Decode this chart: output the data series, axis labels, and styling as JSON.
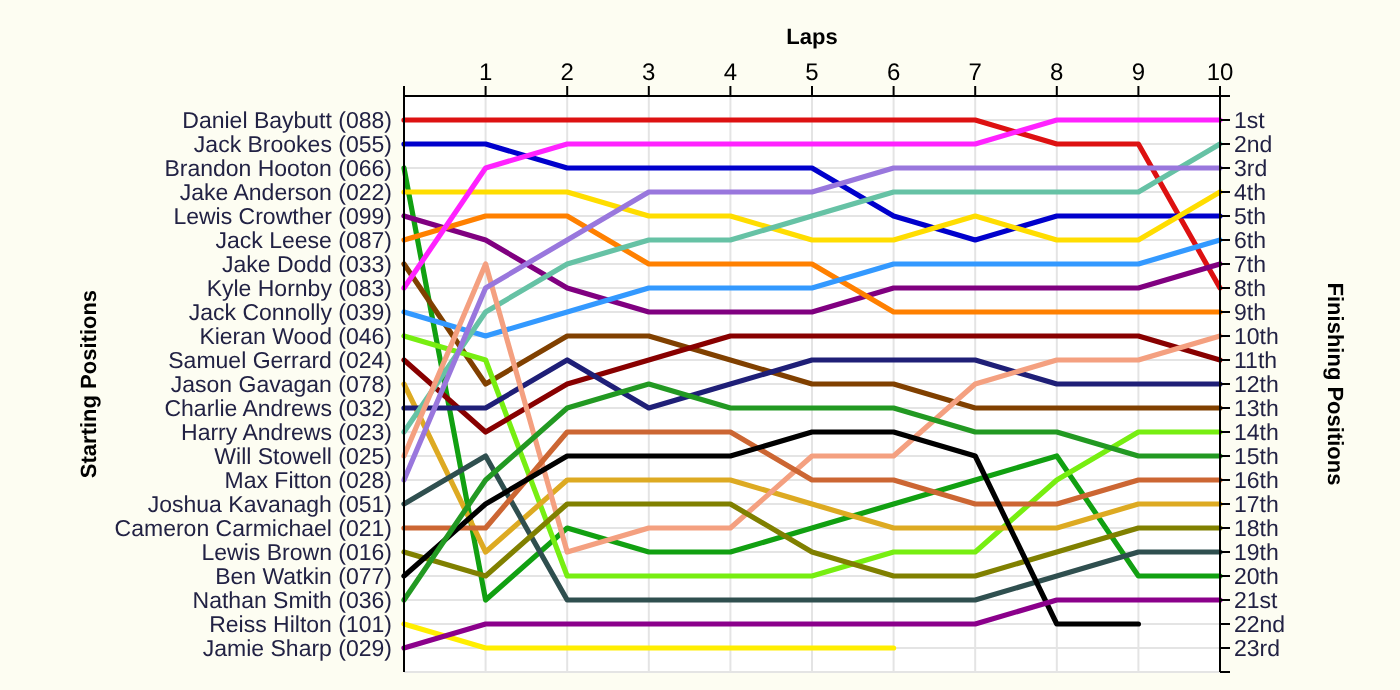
{
  "chart_data": {
    "type": "line",
    "xlabel": "Laps",
    "ylabel": "Finishing Positions",
    "annotations": [
      "Starting Positions"
    ],
    "x": [
      0,
      1,
      2,
      3,
      4,
      5,
      6,
      7,
      8,
      9,
      10
    ],
    "xlim": [
      0,
      10
    ],
    "xticks": [
      {
        "value": 0,
        "label": null
      },
      1,
      2,
      3,
      4,
      5,
      6,
      7,
      8,
      9,
      10
    ],
    "ylim": [
      24,
      0
    ],
    "yticks": [
      {
        "value": 0,
        "label": null
      },
      {
        "value": 1,
        "label": "1st"
      },
      {
        "value": 2,
        "label": "2nd"
      },
      {
        "value": 3,
        "label": "3rd"
      },
      {
        "value": 4,
        "label": "4th"
      },
      {
        "value": 5,
        "label": "5th"
      },
      {
        "value": 6,
        "label": "6th"
      },
      {
        "value": 7,
        "label": "7th"
      },
      {
        "value": 8,
        "label": "8th"
      },
      {
        "value": 9,
        "label": "9th"
      },
      {
        "value": 10,
        "label": "10th"
      },
      {
        "value": 11,
        "label": "11th"
      },
      {
        "value": 12,
        "label": "12th"
      },
      {
        "value": 13,
        "label": "13th"
      },
      {
        "value": 14,
        "label": "14th"
      },
      {
        "value": 15,
        "label": "15th"
      },
      {
        "value": 16,
        "label": "16th"
      },
      {
        "value": 17,
        "label": "17th"
      },
      {
        "value": 18,
        "label": "18th"
      },
      {
        "value": 19,
        "label": "19th"
      },
      {
        "value": 20,
        "label": "20th"
      },
      {
        "value": 21,
        "label": "21st"
      },
      {
        "value": 22,
        "label": "22nd"
      },
      {
        "value": 23,
        "label": "23rd"
      },
      {
        "value": 24,
        "label": null
      }
    ],
    "grid": true,
    "series": [
      {
        "name": "Daniel Baybutt (088)",
        "color": "#dd1111",
        "values": [
          1,
          1,
          1,
          1,
          1,
          1,
          1,
          1,
          2,
          2,
          8
        ]
      },
      {
        "name": "Jack Brookes (055)",
        "color": "#0000cc",
        "values": [
          2,
          2,
          3,
          3,
          3,
          3,
          5,
          6,
          5,
          5,
          5
        ]
      },
      {
        "name": "Brandon Hooton (066)",
        "color": "#11a011",
        "values": [
          3,
          21,
          18,
          19,
          19,
          18,
          17,
          16,
          15,
          20,
          20
        ]
      },
      {
        "name": "Jake Anderson (022)",
        "color": "#ffdd00",
        "values": [
          4,
          4,
          4,
          5,
          5,
          6,
          6,
          5,
          6,
          6,
          4
        ]
      },
      {
        "name": "Lewis Crowther (099)",
        "color": "#800080",
        "values": [
          5,
          6,
          8,
          9,
          9,
          9,
          8,
          8,
          8,
          8,
          7
        ]
      },
      {
        "name": "Jack Leese (087)",
        "color": "#ff8000",
        "values": [
          6,
          5,
          5,
          7,
          7,
          7,
          9,
          9,
          9,
          9,
          9
        ]
      },
      {
        "name": "Jake Dodd (033)",
        "color": "#804000",
        "values": [
          7,
          12,
          10,
          10,
          11,
          12,
          12,
          13,
          13,
          13,
          13
        ]
      },
      {
        "name": "Kyle Hornby (083)",
        "color": "#ff22ff",
        "values": [
          8,
          3,
          2,
          2,
          2,
          2,
          2,
          2,
          1,
          1,
          1
        ]
      },
      {
        "name": "Jack Connolly (039)",
        "color": "#3399ff",
        "values": [
          9,
          10,
          9,
          8,
          8,
          8,
          7,
          7,
          7,
          7,
          6
        ]
      },
      {
        "name": "Kieran Wood (046)",
        "color": "#77ee11",
        "values": [
          10,
          11,
          20,
          20,
          20,
          20,
          19,
          19,
          16,
          14,
          14
        ]
      },
      {
        "name": "Samuel Gerrard (024)",
        "color": "#880000",
        "values": [
          11,
          14,
          12,
          11,
          10,
          10,
          10,
          10,
          10,
          10,
          11
        ]
      },
      {
        "name": "Jason Gavagan (078)",
        "color": "#ddaa22",
        "values": [
          12,
          19,
          16,
          16,
          16,
          17,
          18,
          18,
          18,
          17,
          17
        ]
      },
      {
        "name": "Charlie Andrews (032)",
        "color": "#1f1f77",
        "values": [
          13,
          13,
          11,
          13,
          12,
          11,
          11,
          11,
          12,
          12,
          12
        ]
      },
      {
        "name": "Harry Andrews (023)",
        "color": "#66c2a5",
        "values": [
          14,
          9,
          7,
          6,
          6,
          5,
          4,
          4,
          4,
          4,
          2
        ]
      },
      {
        "name": "Will Stowell (025)",
        "color": "#f4a080",
        "values": [
          15,
          7,
          19,
          18,
          18,
          15,
          15,
          12,
          11,
          11,
          10
        ]
      },
      {
        "name": "Max Fitton (028)",
        "color": "#9977dd",
        "values": [
          16,
          8,
          6,
          4,
          4,
          4,
          3,
          3,
          3,
          3,
          3
        ]
      },
      {
        "name": "Joshua Kavanagh (051)",
        "color": "#2f4f4f",
        "values": [
          17,
          15,
          21,
          21,
          21,
          21,
          21,
          21,
          20,
          19,
          19
        ]
      },
      {
        "name": "Cameron Carmichael (021)",
        "color": "#cc6633",
        "values": [
          18,
          18,
          14,
          14,
          14,
          16,
          16,
          17,
          17,
          16,
          16
        ]
      },
      {
        "name": "Lewis Brown (016)",
        "color": "#808000",
        "values": [
          19,
          20,
          17,
          17,
          17,
          19,
          20,
          20,
          19,
          18,
          18
        ]
      },
      {
        "name": "Ben Watkin (077)",
        "color": "#000000",
        "values": [
          20,
          17,
          15,
          15,
          15,
          14,
          14,
          15,
          22,
          22,
          null
        ]
      },
      {
        "name": "Nathan Smith (036)",
        "color": "#229922",
        "values": [
          21,
          16,
          13,
          12,
          13,
          13,
          13,
          14,
          14,
          15,
          15
        ]
      },
      {
        "name": "Reiss Hilton (101)",
        "color": "#ffee00",
        "values": [
          22,
          23,
          23,
          23,
          23,
          23,
          23,
          null,
          null,
          null,
          null
        ]
      },
      {
        "name": "Jamie Sharp (029)",
        "color": "#8b008b",
        "values": [
          23,
          22,
          22,
          22,
          22,
          22,
          22,
          22,
          21,
          21,
          21
        ]
      }
    ]
  }
}
